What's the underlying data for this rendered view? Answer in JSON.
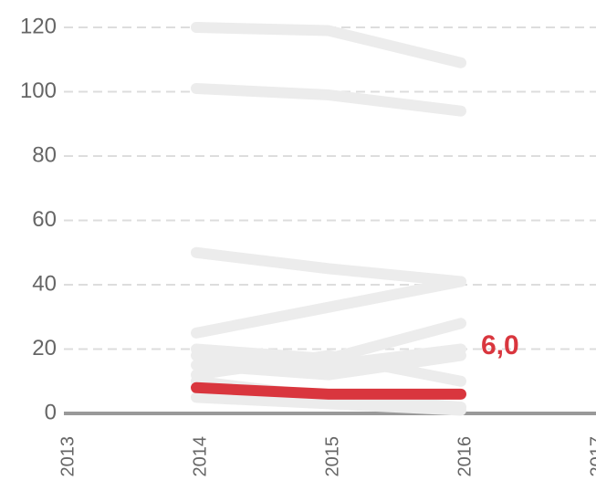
{
  "chart_data": {
    "type": "line",
    "x": [
      2014,
      2015,
      2016
    ],
    "series": [
      {
        "color": "#ececec",
        "values": [
          120,
          119,
          109
        ]
      },
      {
        "color": "#ececec",
        "values": [
          101,
          99,
          94
        ]
      },
      {
        "color": "#ececec",
        "values": [
          50,
          45,
          41
        ]
      },
      {
        "color": "#ececec",
        "values": [
          25,
          33,
          41
        ]
      },
      {
        "color": "#ececec",
        "values": [
          20,
          17,
          28
        ]
      },
      {
        "color": "#ececec",
        "values": [
          18,
          15,
          20
        ]
      },
      {
        "color": "#ececec",
        "values": [
          15,
          12,
          18
        ]
      },
      {
        "color": "#ececec",
        "values": [
          12,
          18,
          10
        ]
      },
      {
        "color": "#ececec",
        "values": [
          10,
          5,
          2
        ]
      },
      {
        "color": "#ececec",
        "values": [
          5,
          3,
          1
        ]
      },
      {
        "color": "#d9363e",
        "values": [
          8,
          6,
          6
        ],
        "value_labels": [
          null,
          null,
          "6,0"
        ]
      }
    ],
    "xlim": [
      2013,
      2017
    ],
    "xticks": [
      2013,
      2014,
      2015,
      2016,
      2017
    ],
    "ylim": [
      0,
      120
    ],
    "yticks": [
      0,
      20,
      40,
      60,
      80,
      100,
      120
    ],
    "grid": true
  }
}
